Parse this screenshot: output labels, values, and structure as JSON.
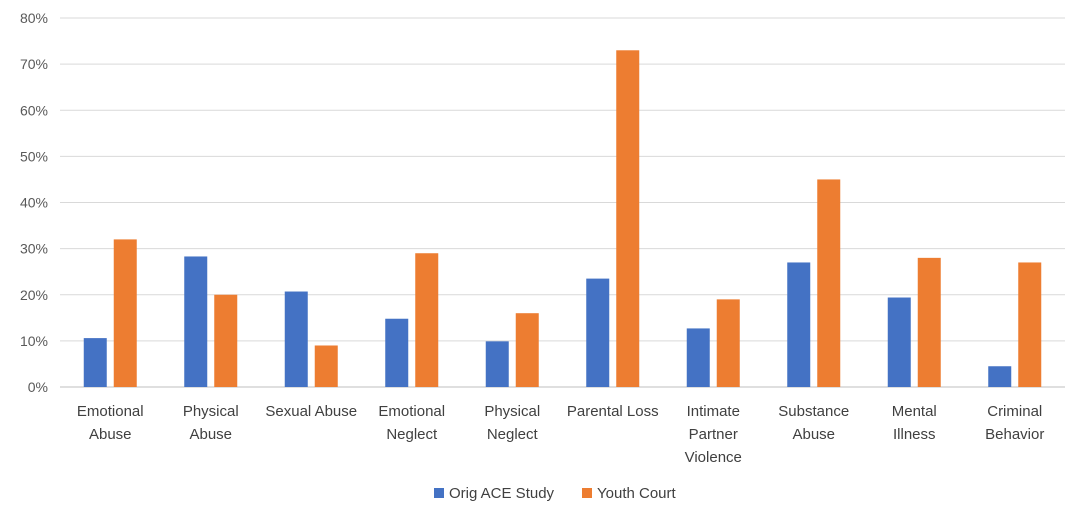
{
  "chart_data": {
    "type": "bar",
    "categories": [
      [
        "Emotional",
        "Abuse"
      ],
      [
        "Physical",
        "Abuse"
      ],
      [
        "Sexual Abuse"
      ],
      [
        "Emotional",
        "Neglect"
      ],
      [
        "Physical",
        "Neglect"
      ],
      [
        "Parental Loss"
      ],
      [
        "Intimate",
        "Partner",
        "Violence"
      ],
      [
        "Substance",
        "Abuse"
      ],
      [
        "Mental",
        "Illness"
      ],
      [
        "Criminal",
        "Behavior"
      ]
    ],
    "series": [
      {
        "name": "Orig ACE Study",
        "color": "#4472C4",
        "values": [
          10.6,
          28.3,
          20.7,
          14.8,
          9.9,
          23.5,
          12.7,
          27.0,
          19.4,
          4.5
        ]
      },
      {
        "name": "Youth Court",
        "color": "#ED7D31",
        "values": [
          32,
          20,
          9,
          29,
          16,
          73,
          19,
          45,
          28,
          27
        ]
      }
    ],
    "ylim": [
      0,
      80
    ],
    "yticks": [
      "0%",
      "10%",
      "20%",
      "30%",
      "40%",
      "50%",
      "60%",
      "70%",
      "80%"
    ],
    "grid": true,
    "legend_position": "bottom"
  }
}
